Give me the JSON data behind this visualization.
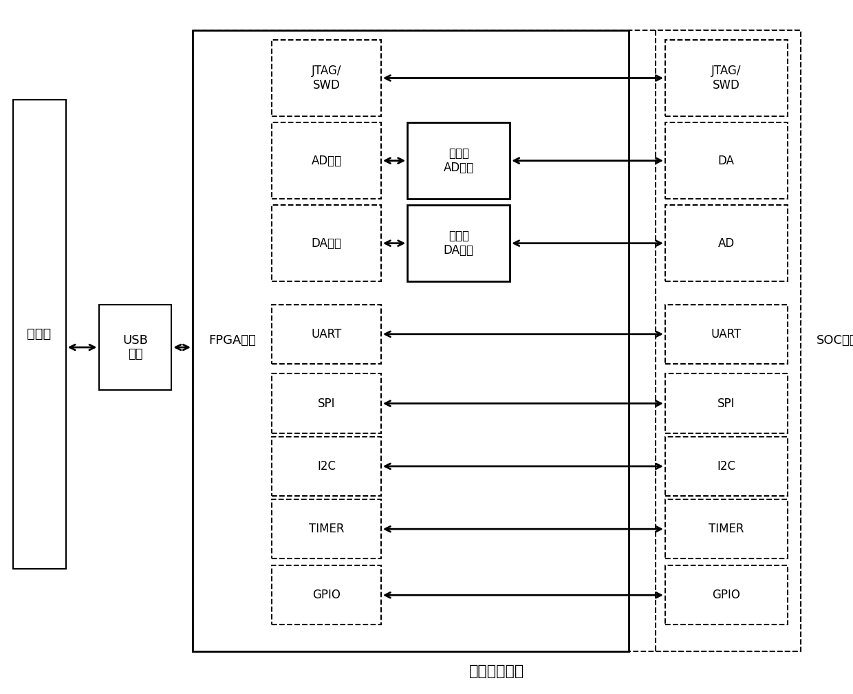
{
  "title": "芯片测试工具",
  "background": "#ffffff",
  "fig_w": 12.4,
  "fig_h": 10.09,
  "shangweiji_label": "上位机",
  "usb_label": "USB\n模块",
  "fpga_label": "FPGA芯片",
  "soc_label": "SOC芯片",
  "inner_blocks_fpga": [
    {
      "label": "JTAG/\nSWD",
      "col": "left"
    },
    {
      "label": "AD逻辑",
      "col": "left"
    },
    {
      "label": "DA逻辑",
      "col": "left"
    },
    {
      "label": "UART",
      "col": "left"
    },
    {
      "label": "SPI",
      "col": "left"
    },
    {
      "label": "I2C",
      "col": "left"
    },
    {
      "label": "TIMER",
      "col": "left"
    },
    {
      "label": "GPIO",
      "col": "left"
    }
  ],
  "inner_blocks_mid": [
    {
      "label": "高精度\nAD模块",
      "row": 1
    },
    {
      "label": "高精度\nDA模块",
      "row": 2
    }
  ],
  "inner_blocks_soc": [
    {
      "label": "JTAG/\nSWD"
    },
    {
      "label": "DA"
    },
    {
      "label": "AD"
    },
    {
      "label": "UART"
    },
    {
      "label": "SPI"
    },
    {
      "label": "I2C"
    },
    {
      "label": "TIMER"
    },
    {
      "label": "GPIO"
    }
  ]
}
